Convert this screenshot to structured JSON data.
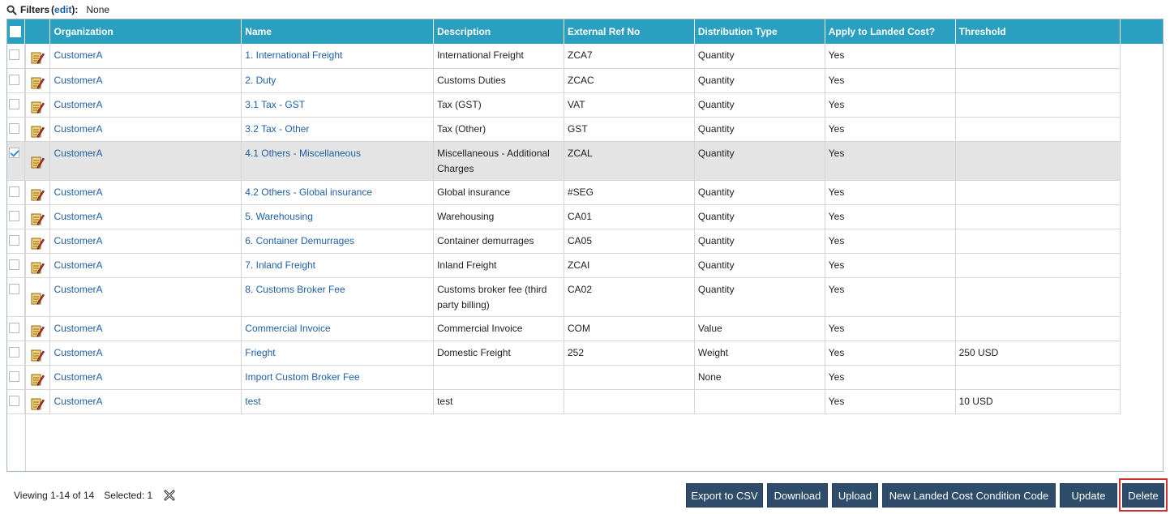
{
  "filters": {
    "label": "Filters",
    "open_paren": "(",
    "edit": "edit",
    "close_paren": "):",
    "value": "None"
  },
  "table": {
    "columns": [
      "Organization",
      "Name",
      "Description",
      "External Ref No",
      "Distribution Type",
      "Apply to Landed Cost?",
      "Threshold"
    ],
    "rows": [
      {
        "checked": false,
        "organization": "CustomerA",
        "name": "1. International Freight",
        "description": "International Freight",
        "ext_ref": "ZCA7",
        "distribution": "Quantity",
        "apply": "Yes",
        "threshold": ""
      },
      {
        "checked": false,
        "organization": "CustomerA",
        "name": "2. Duty",
        "description": "Customs Duties",
        "ext_ref": "ZCAC",
        "distribution": "Quantity",
        "apply": "Yes",
        "threshold": ""
      },
      {
        "checked": false,
        "organization": "CustomerA",
        "name": "3.1 Tax - GST",
        "description": "Tax (GST)",
        "ext_ref": "VAT",
        "distribution": "Quantity",
        "apply": "Yes",
        "threshold": ""
      },
      {
        "checked": false,
        "organization": "CustomerA",
        "name": "3.2 Tax - Other",
        "description": "Tax (Other)",
        "ext_ref": "GST",
        "distribution": "Quantity",
        "apply": "Yes",
        "threshold": ""
      },
      {
        "checked": true,
        "organization": "CustomerA",
        "name": "4.1 Others - Miscellaneous",
        "description": "Miscellaneous - Additional Charges",
        "ext_ref": "ZCAL",
        "distribution": "Quantity",
        "apply": "Yes",
        "threshold": ""
      },
      {
        "checked": false,
        "organization": "CustomerA",
        "name": "4.2 Others - Global insurance",
        "description": "Global insurance",
        "ext_ref": "#SEG",
        "distribution": "Quantity",
        "apply": "Yes",
        "threshold": ""
      },
      {
        "checked": false,
        "organization": "CustomerA",
        "name": "5. Warehousing",
        "description": "Warehousing",
        "ext_ref": "CA01",
        "distribution": "Quantity",
        "apply": "Yes",
        "threshold": ""
      },
      {
        "checked": false,
        "organization": "CustomerA",
        "name": "6. Container Demurrages",
        "description": "Container demurrages",
        "ext_ref": "CA05",
        "distribution": "Quantity",
        "apply": "Yes",
        "threshold": ""
      },
      {
        "checked": false,
        "organization": "CustomerA",
        "name": "7. Inland Freight",
        "description": "Inland Freight",
        "ext_ref": "ZCAI",
        "distribution": "Quantity",
        "apply": "Yes",
        "threshold": ""
      },
      {
        "checked": false,
        "organization": "CustomerA",
        "name": "8. Customs Broker Fee",
        "description": "Customs broker fee (third party billing)",
        "ext_ref": "CA02",
        "distribution": "Quantity",
        "apply": "Yes",
        "threshold": ""
      },
      {
        "checked": false,
        "organization": "CustomerA",
        "name": "Commercial Invoice",
        "description": "Commercial Invoice",
        "ext_ref": "COM",
        "distribution": "Value",
        "apply": "Yes",
        "threshold": ""
      },
      {
        "checked": false,
        "organization": "CustomerA",
        "name": "Frieght",
        "description": "Domestic Freight",
        "ext_ref": "252",
        "distribution": "Weight",
        "apply": "Yes",
        "threshold": "250 USD"
      },
      {
        "checked": false,
        "organization": "CustomerA",
        "name": "Import Custom Broker Fee",
        "description": "",
        "ext_ref": "",
        "distribution": "None",
        "apply": "Yes",
        "threshold": ""
      },
      {
        "checked": false,
        "organization": "CustomerA",
        "name": "test",
        "description": "test",
        "ext_ref": "",
        "distribution": "",
        "apply": "Yes",
        "threshold": "10 USD"
      }
    ]
  },
  "footer": {
    "viewing": "Viewing 1-14 of 14",
    "selected": "Selected: 1",
    "buttons": {
      "export": "Export to CSV",
      "download": "Download",
      "upload": "Upload",
      "new_code": "New Landed Cost Condition Code",
      "update": "Update",
      "delete": "Delete"
    }
  },
  "colors": {
    "header": "#2a9fc0",
    "button": "#2f4d6b",
    "link": "#1f5fa6",
    "selected_row": "#e4e4e4",
    "highlight": "#d03030"
  },
  "icons": [
    "search-icon",
    "edit-record-icon",
    "clear-selection-icon",
    "checkmark-icon"
  ]
}
